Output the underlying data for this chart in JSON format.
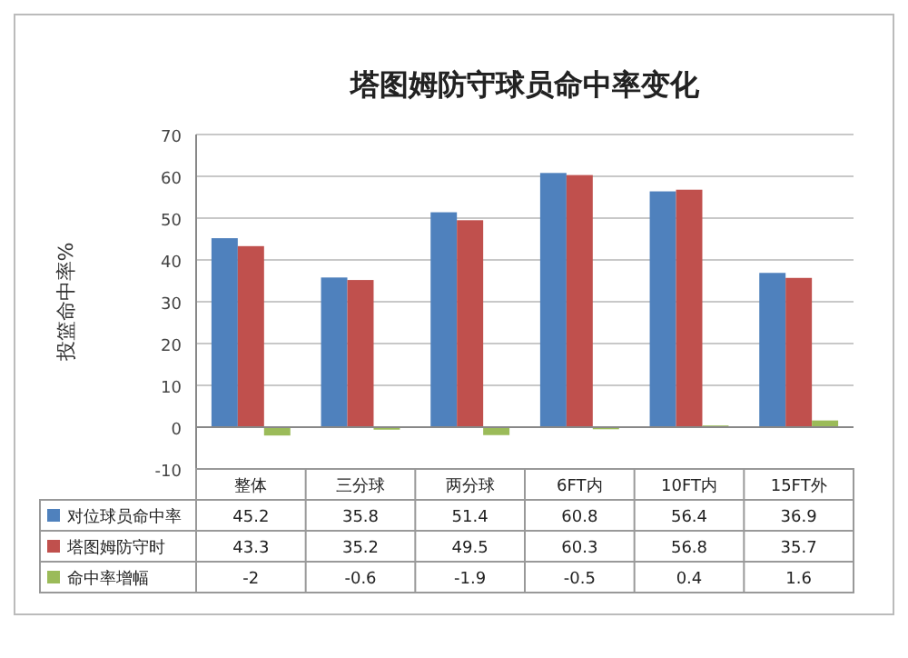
{
  "chart_data": {
    "type": "bar",
    "title": "塔图姆防守球员命中率变化",
    "ylabel": "投篮命中率%",
    "categories": [
      "整体",
      "三分球",
      "两分球",
      "6FT内",
      "10FT内",
      "15FT外"
    ],
    "series": [
      {
        "name": "对位球员命中率",
        "color": "#4f81bd",
        "values": [
          45.2,
          35.8,
          51.4,
          60.8,
          56.4,
          36.9
        ]
      },
      {
        "name": "塔图姆防守时",
        "color": "#c0504d",
        "values": [
          43.3,
          35.2,
          49.5,
          60.3,
          56.8,
          35.7
        ]
      },
      {
        "name": "命中率增幅",
        "color": "#9bbb59",
        "values": [
          -2,
          -0.6,
          -1.9,
          -0.5,
          0.4,
          1.6
        ]
      }
    ],
    "ylim": [
      -10,
      70
    ],
    "yticks": [
      -10,
      0,
      10,
      20,
      30,
      40,
      50,
      60,
      70
    ],
    "grid": "y",
    "data_labels": true,
    "legend": "bottom"
  }
}
